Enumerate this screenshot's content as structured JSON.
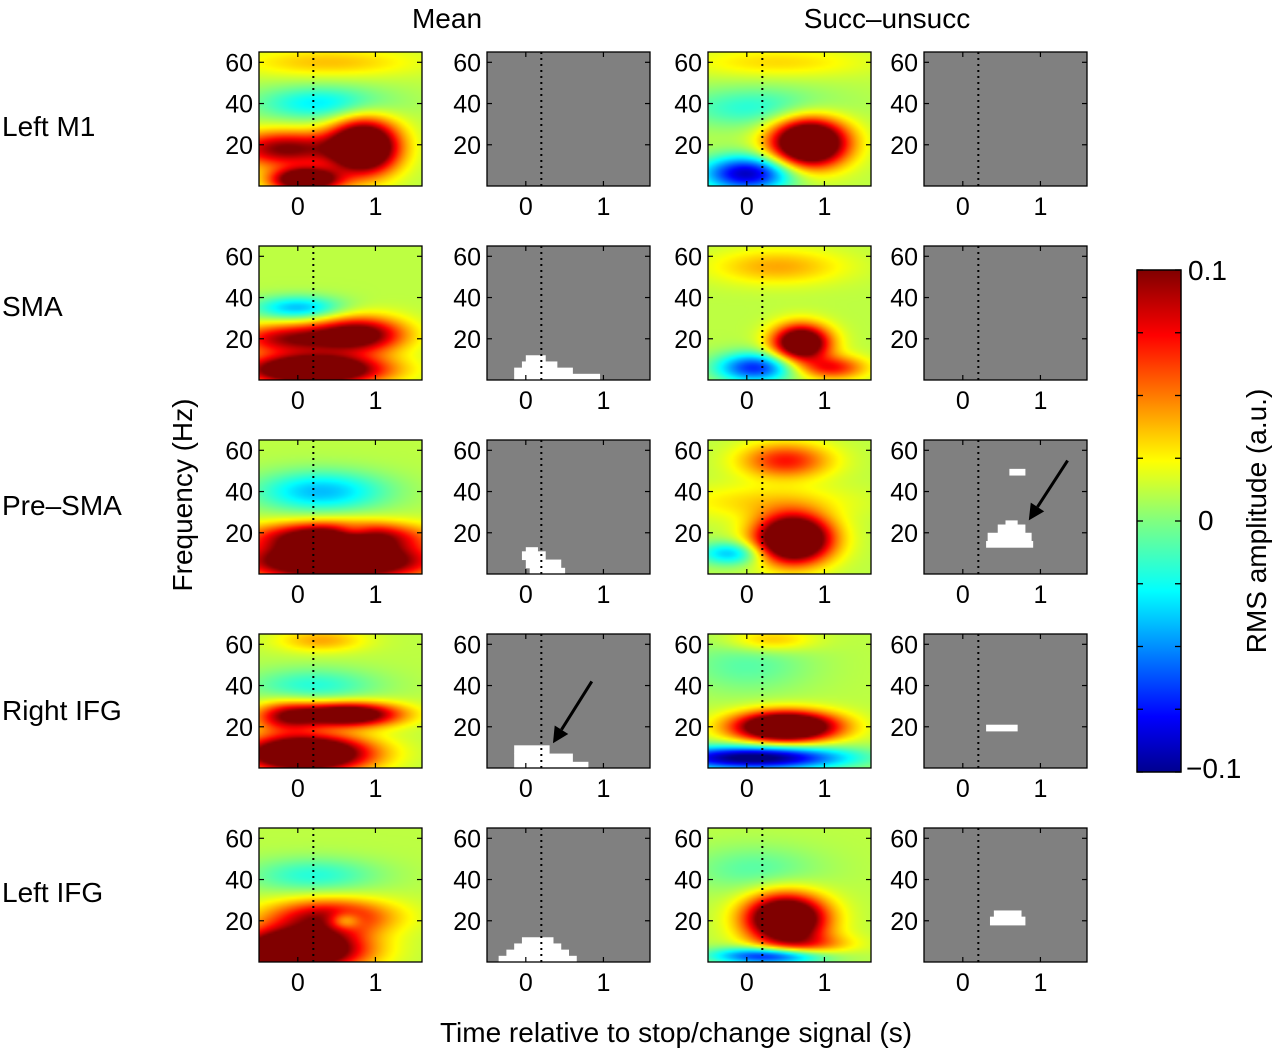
{
  "chart_data": {
    "type": "heatmap",
    "column_headers": [
      "Mean",
      "Succ–unsucc"
    ],
    "panel_types": [
      "amplitude",
      "significance",
      "amplitude",
      "significance"
    ],
    "regions": [
      "Left M1",
      "SMA",
      "Pre–SMA",
      "Right IFG",
      "Left IFG"
    ],
    "xlabel": "Time relative to stop/change signal (s)",
    "ylabel": "Frequency (Hz)",
    "xlim": [
      -0.5,
      1.6
    ],
    "ylim": [
      0,
      65
    ],
    "xticks": [
      0,
      1
    ],
    "yticks": [
      20,
      40,
      60
    ],
    "event_marker_x": 0.2,
    "colorbar": {
      "label": "RMS amplitude (a.u.)",
      "min": -0.1,
      "max": 0.1,
      "tick_labels": [
        "0.1",
        "0",
        "−0.1"
      ],
      "tick_values": [
        0.1,
        0,
        -0.1
      ]
    },
    "series": [
      {
        "name": "Left M1",
        "mean": [
          {
            "t": 0.85,
            "f": 19,
            "st": 0.3,
            "sf": 9,
            "a": 0.16
          },
          {
            "t": 0.1,
            "f": 3,
            "st": 0.3,
            "sf": 4,
            "a": 0.14
          },
          {
            "t": -0.15,
            "f": 18,
            "st": 0.5,
            "sf": 6,
            "a": 0.09
          },
          {
            "t": 0.3,
            "f": 40,
            "st": 0.6,
            "sf": 6,
            "a": -0.04
          },
          {
            "t": 0.4,
            "f": 60,
            "st": 0.8,
            "sf": 5,
            "a": 0.025
          }
        ],
        "mean_sig": [],
        "diff": [
          {
            "t": 0.8,
            "f": 21,
            "st": 0.33,
            "sf": 8,
            "a": 0.17
          },
          {
            "t": 0.0,
            "f": 6,
            "st": 0.4,
            "sf": 6,
            "a": -0.1
          },
          {
            "t": 0.1,
            "f": 38,
            "st": 0.7,
            "sf": 7,
            "a": -0.03
          },
          {
            "t": 0.4,
            "f": 60,
            "st": 0.8,
            "sf": 5,
            "a": 0.02
          }
        ],
        "diff_sig": []
      },
      {
        "name": "SMA",
        "mean": [
          {
            "t": 0.2,
            "f": 5,
            "st": 0.6,
            "sf": 5,
            "a": 0.16
          },
          {
            "t": 0.8,
            "f": 22,
            "st": 0.4,
            "sf": 6,
            "a": 0.1
          },
          {
            "t": -0.1,
            "f": 20,
            "st": 0.5,
            "sf": 5,
            "a": 0.08
          },
          {
            "t": 0.0,
            "f": 35,
            "st": 0.4,
            "sf": 4,
            "a": -0.05
          }
        ],
        "mean_sig": [
          {
            "f0": 0,
            "f1": 3,
            "t0": -0.15,
            "t1": 0.95
          },
          {
            "f0": 3,
            "f1": 6,
            "t0": -0.15,
            "t1": 0.6
          },
          {
            "f0": 6,
            "f1": 9,
            "t0": -0.05,
            "t1": 0.4
          },
          {
            "f0": 9,
            "f1": 12,
            "t0": 0.0,
            "t1": 0.25
          }
        ],
        "diff": [
          {
            "t": 0.7,
            "f": 18,
            "st": 0.25,
            "sf": 6,
            "a": 0.14
          },
          {
            "t": 0.1,
            "f": 6,
            "st": 0.35,
            "sf": 5,
            "a": -0.08
          },
          {
            "t": 1.1,
            "f": 6,
            "st": 0.3,
            "sf": 4,
            "a": 0.06
          },
          {
            "t": 0.4,
            "f": 55,
            "st": 0.6,
            "sf": 6,
            "a": 0.03
          }
        ],
        "diff_sig": []
      },
      {
        "name": "Pre–SMA",
        "mean": [
          {
            "t": 0.5,
            "f": 6,
            "st": 0.8,
            "sf": 6,
            "a": 0.16
          },
          {
            "t": 0.5,
            "f": 18,
            "st": 0.7,
            "sf": 5,
            "a": 0.12
          },
          {
            "t": 0.3,
            "f": 40,
            "st": 0.6,
            "sf": 7,
            "a": -0.05
          },
          {
            "t": 0.7,
            "f": 20,
            "st": 0.2,
            "sf": 3,
            "a": -0.04
          }
        ],
        "mean_sig": [
          {
            "f0": 0,
            "f1": 3,
            "t0": 0.05,
            "t1": 0.5
          },
          {
            "f0": 3,
            "f1": 7,
            "t0": 0.0,
            "t1": 0.45
          },
          {
            "f0": 7,
            "f1": 11,
            "t0": -0.05,
            "t1": 0.25
          },
          {
            "f0": 11,
            "f1": 13,
            "t0": 0.0,
            "t1": 0.15
          }
        ],
        "diff": [
          {
            "t": 0.6,
            "f": 17,
            "st": 0.33,
            "sf": 8,
            "a": 0.17
          },
          {
            "t": 0.5,
            "f": 55,
            "st": 0.4,
            "sf": 6,
            "a": 0.06
          },
          {
            "t": -0.2,
            "f": 10,
            "st": 0.3,
            "sf": 4,
            "a": -0.05
          },
          {
            "t": 0.2,
            "f": 35,
            "st": 0.8,
            "sf": 6,
            "a": 0.02
          }
        ],
        "diff_sig": [
          {
            "f0": 48,
            "f1": 51,
            "t0": 0.6,
            "t1": 0.8
          },
          {
            "f0": 13,
            "f1": 16,
            "t0": 0.3,
            "t1": 0.9
          },
          {
            "f0": 16,
            "f1": 20,
            "t0": 0.32,
            "t1": 0.88
          },
          {
            "f0": 20,
            "f1": 24,
            "t0": 0.45,
            "t1": 0.8
          },
          {
            "f0": 24,
            "f1": 26,
            "t0": 0.55,
            "t1": 0.7
          }
        ]
      },
      {
        "name": "Right IFG",
        "mean": [
          {
            "t": 0.1,
            "f": 7,
            "st": 0.55,
            "sf": 6,
            "a": 0.17
          },
          {
            "t": 0.65,
            "f": 26,
            "st": 0.45,
            "sf": 4,
            "a": 0.13
          },
          {
            "t": -0.15,
            "f": 25,
            "st": 0.3,
            "sf": 5,
            "a": 0.07
          },
          {
            "t": 0.2,
            "f": 40,
            "st": 0.6,
            "sf": 6,
            "a": -0.03
          },
          {
            "t": 0.3,
            "f": 62,
            "st": 0.4,
            "sf": 4,
            "a": 0.03
          }
        ],
        "mean_sig": [
          {
            "f0": 0,
            "f1": 3,
            "t0": -0.15,
            "t1": 0.8
          },
          {
            "f0": 3,
            "f1": 7,
            "t0": -0.15,
            "t1": 0.6
          },
          {
            "f0": 7,
            "f1": 11,
            "t0": -0.15,
            "t1": 0.3
          }
        ],
        "diff": [
          {
            "t": 0.5,
            "f": 20,
            "st": 0.45,
            "sf": 5,
            "a": 0.17
          },
          {
            "t": 0.1,
            "f": 5,
            "st": 0.8,
            "sf": 4,
            "a": -0.12
          },
          {
            "t": 0.0,
            "f": 50,
            "st": 0.6,
            "sf": 10,
            "a": -0.02
          },
          {
            "t": 0.3,
            "f": 62,
            "st": 0.4,
            "sf": 4,
            "a": 0.03
          }
        ],
        "diff_sig": [
          {
            "f0": 18,
            "f1": 21,
            "t0": 0.3,
            "t1": 0.7
          }
        ]
      },
      {
        "name": "Left IFG",
        "mean": [
          {
            "t": 0.0,
            "f": 6,
            "st": 0.55,
            "sf": 7,
            "a": 0.17
          },
          {
            "t": 0.4,
            "f": 22,
            "st": 0.55,
            "sf": 6,
            "a": 0.08
          },
          {
            "t": 0.6,
            "f": 20,
            "st": 0.15,
            "sf": 3,
            "a": -0.05
          },
          {
            "t": 0.2,
            "f": 42,
            "st": 0.6,
            "sf": 6,
            "a": -0.03
          }
        ],
        "mean_sig": [
          {
            "f0": 0,
            "f1": 3,
            "t0": -0.35,
            "t1": 0.65
          },
          {
            "f0": 3,
            "f1": 6,
            "t0": -0.25,
            "t1": 0.55
          },
          {
            "f0": 6,
            "f1": 9,
            "t0": -0.15,
            "t1": 0.45
          },
          {
            "f0": 9,
            "f1": 12,
            "t0": -0.05,
            "t1": 0.35
          }
        ],
        "diff": [
          {
            "t": 0.5,
            "f": 21,
            "st": 0.35,
            "sf": 8,
            "a": 0.16
          },
          {
            "t": 0.3,
            "f": 3,
            "st": 0.5,
            "sf": 3,
            "a": -0.09
          },
          {
            "t": 0.1,
            "f": 45,
            "st": 0.6,
            "sf": 8,
            "a": -0.02
          },
          {
            "t": 0.8,
            "f": 8,
            "st": 0.4,
            "sf": 4,
            "a": 0.04
          }
        ],
        "diff_sig": [
          {
            "f0": 18,
            "f1": 22,
            "t0": 0.35,
            "t1": 0.8
          },
          {
            "f0": 22,
            "f1": 25,
            "t0": 0.4,
            "t1": 0.75
          }
        ]
      }
    ],
    "annotations": [
      {
        "type": "arrow",
        "row": 2,
        "col": 3,
        "from": {
          "t": 1.35,
          "f": 55
        },
        "to": {
          "t": 0.85,
          "f": 26
        }
      },
      {
        "type": "arrow",
        "row": 3,
        "col": 1,
        "from": {
          "t": 0.85,
          "f": 42
        },
        "to": {
          "t": 0.35,
          "f": 12
        }
      }
    ]
  }
}
